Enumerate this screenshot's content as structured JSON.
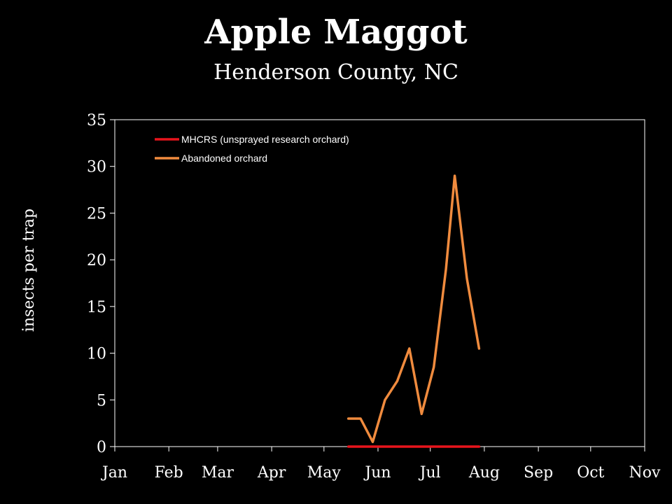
{
  "chart_data": {
    "type": "line",
    "title": "Apple Maggot",
    "subtitle": "Henderson County, NC",
    "ylabel": "insects per trap",
    "xlabel": "",
    "ylim": [
      0,
      35
    ],
    "yticks": [
      0,
      5,
      10,
      15,
      20,
      25,
      30,
      35
    ],
    "xlim": [
      "Jan 1",
      "Nov 1"
    ],
    "xticks": [
      "Jan",
      "Feb",
      "Mar",
      "Apr",
      "May",
      "Jun",
      "Jul",
      "Aug",
      "Sep",
      "Oct",
      "Nov"
    ],
    "legend_position": "top-left",
    "grid": false,
    "series": [
      {
        "name": "MHCRS (unsprayed research orchard)",
        "color": "#e8141c",
        "x": [
          "May 15",
          "Jul 29"
        ],
        "y": [
          0,
          0
        ]
      },
      {
        "name": "Abandoned orchard",
        "color": "#f08b3e",
        "x": [
          "May 15",
          "May 22",
          "May 29",
          "Jun 5",
          "Jun 12",
          "Jun 19",
          "Jun 26",
          "Jul 3",
          "Jul 10",
          "Jul 15",
          "Jul 22",
          "Jul 29"
        ],
        "y": [
          3,
          3,
          0.5,
          5,
          7,
          10.5,
          3.5,
          8.5,
          19,
          29,
          18,
          10.5
        ]
      }
    ]
  }
}
